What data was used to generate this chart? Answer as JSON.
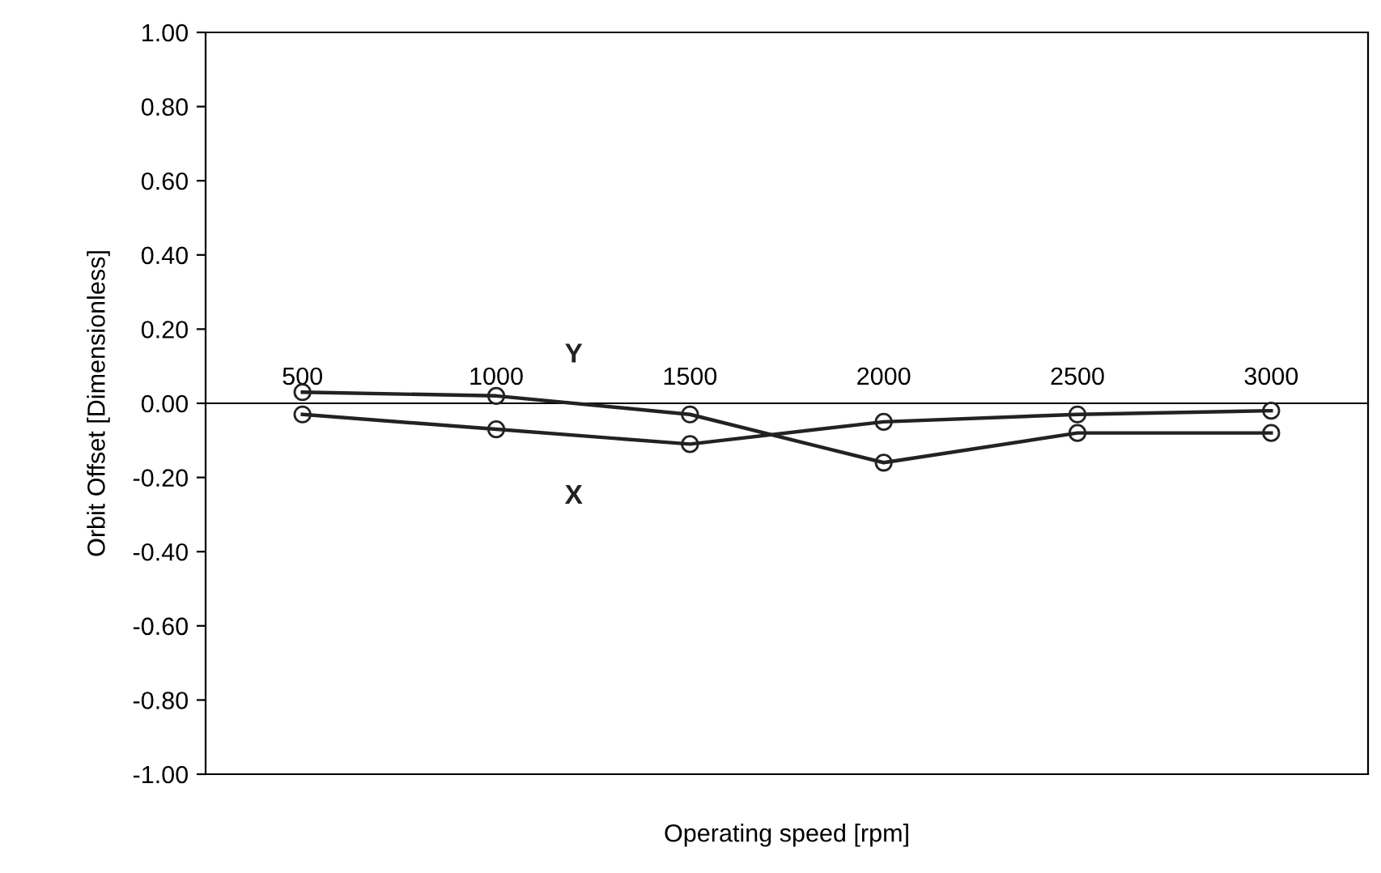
{
  "chart_data": {
    "type": "line",
    "xlabel": "Operating speed [rpm]",
    "ylabel": "Orbit Offset [Dimensionless]",
    "categories": [
      "500",
      "1000",
      "1500",
      "2000",
      "2500",
      "3000"
    ],
    "series": [
      {
        "name": "Y",
        "color": "#222222",
        "values": [
          0.03,
          0.02,
          -0.03,
          -0.16,
          -0.08,
          -0.08
        ]
      },
      {
        "name": "X",
        "color": "#222222",
        "values": [
          -0.03,
          -0.07,
          -0.11,
          -0.05,
          -0.03,
          -0.02
        ]
      }
    ],
    "ylim": [
      -1.0,
      1.0
    ],
    "yticks": [
      {
        "value": -1.0,
        "label": "-1.00"
      },
      {
        "value": -0.8,
        "label": "-0.80"
      },
      {
        "value": -0.6,
        "label": "-0.60"
      },
      {
        "value": -0.4,
        "label": "-0.40"
      },
      {
        "value": -0.2,
        "label": "-0.20"
      },
      {
        "value": 0,
        "label": "0.00"
      },
      {
        "value": 0.2,
        "label": "0.20"
      },
      {
        "value": 0.4,
        "label": "0.40"
      },
      {
        "value": 0.6,
        "label": "0.60"
      },
      {
        "value": 0.8,
        "label": "0.80"
      },
      {
        "value": 1.0,
        "label": "1.00"
      }
    ],
    "grid": false,
    "legend": false,
    "marker": "circle",
    "line_style": "solid"
  }
}
